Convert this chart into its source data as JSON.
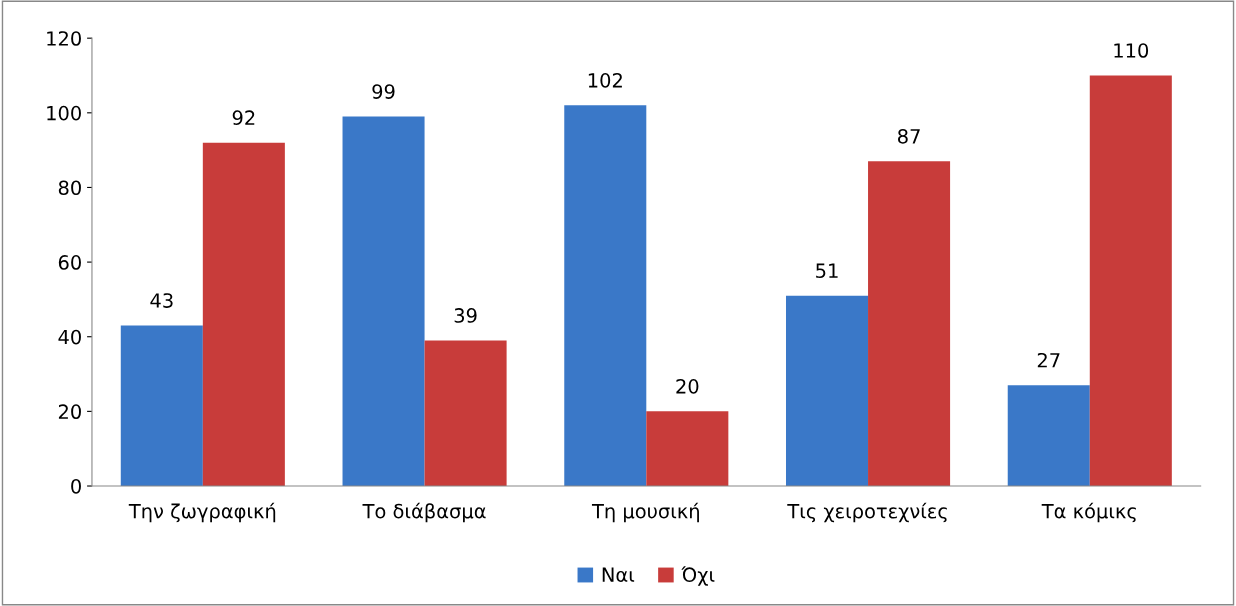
{
  "chart_data": {
    "type": "bar",
    "categories": [
      "Την ζωγραφική",
      "Το διάβασμα",
      "Τη μουσική",
      "Τις χειροτεχνίες",
      "Τα κόμικς"
    ],
    "series": [
      {
        "name": "Ναι",
        "color": "#3a78c8",
        "values": [
          43,
          99,
          102,
          51,
          27
        ]
      },
      {
        "name": "Όχι",
        "color": "#c83c3a",
        "values": [
          92,
          39,
          20,
          87,
          110
        ]
      }
    ],
    "ylim": [
      0,
      120
    ],
    "yticks": [
      0,
      20,
      40,
      60,
      80,
      100,
      120
    ],
    "data_labels": true,
    "grid": false,
    "legend": "bottom"
  }
}
